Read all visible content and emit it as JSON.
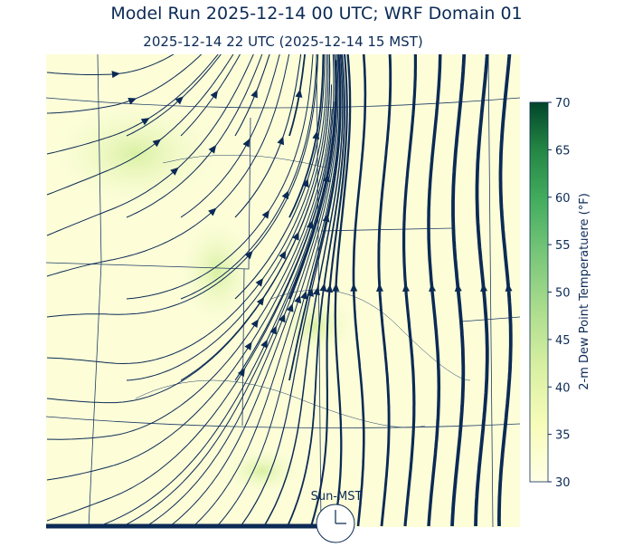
{
  "title": "Model Run 2025-12-14 00 UTC; WRF Domain 01",
  "subtitle": "2025-12-14 22 UTC  (2025-12-14 15 MST)",
  "clock_label": "Sun-MST",
  "colorbar": {
    "label": "2-m Dew Point Temperatuere (°F)",
    "lim": [
      30,
      70
    ],
    "ticks": [
      30,
      35,
      40,
      45,
      50,
      55,
      60,
      65,
      70
    ]
  }
}
